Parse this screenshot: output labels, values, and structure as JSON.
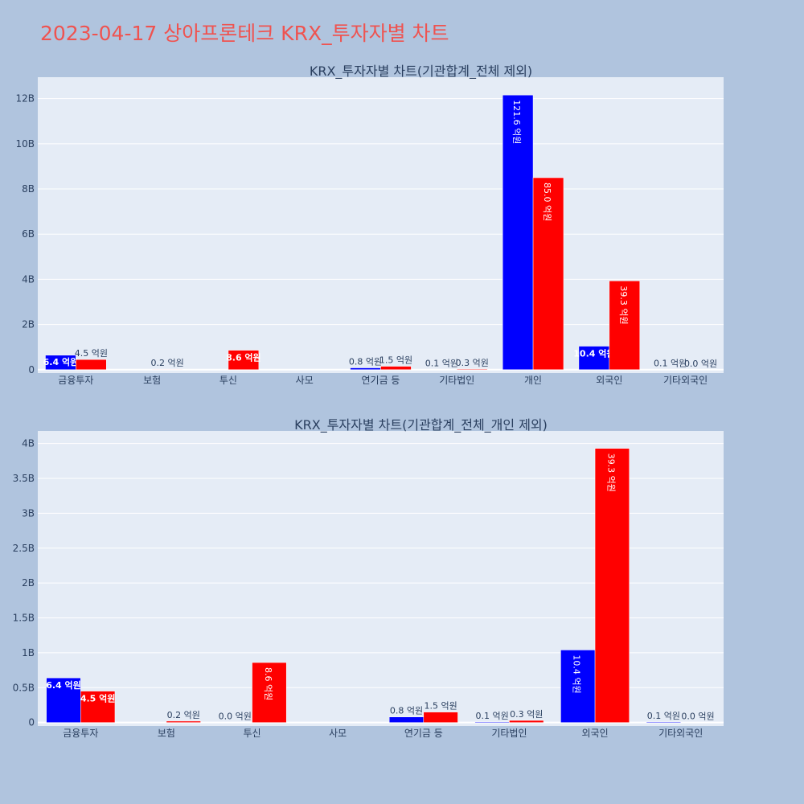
{
  "page_title": "2023-04-17 상아프론테크 KRX_투자자별 차트",
  "colors": {
    "buy": "#0000ff",
    "sell": "#ff0000",
    "plot_bg": "#e5ecf6",
    "grid": "#ffffff",
    "page_bg": "#b0c4de",
    "text": "#2a3f5f",
    "title": "#ef5350"
  },
  "chart_data": [
    {
      "type": "bar",
      "title": "KRX_투자자별 차트(기관합계_전체 제외)",
      "categories": [
        "금융투자",
        "보험",
        "투신",
        "사모",
        "연기금 등",
        "기타법인",
        "개인",
        "외국인",
        "기타외국인"
      ],
      "ylim": [
        -0.15,
        12.95
      ],
      "yticks": [
        0,
        2,
        4,
        6,
        8,
        10,
        12
      ],
      "ytick_labels": [
        "0",
        "2B",
        "4B",
        "6B",
        "8B",
        "10B",
        "12B"
      ],
      "series": [
        {
          "values": [
            0.64,
            0,
            0,
            0,
            0.08,
            0.01,
            12.16,
            1.04,
            0.01
          ],
          "labels": [
            "6.4 억원",
            "",
            "",
            "",
            "0.8 억원",
            "0.1 억원",
            "121.6 억원",
            "10.4 억원",
            "0.1 억원"
          ],
          "label_pos": [
            "inside",
            "",
            "",
            "",
            "outside",
            "outside",
            "inside",
            "inside",
            "outside"
          ]
        },
        {
          "values": [
            0.45,
            0.02,
            0.86,
            0,
            0.15,
            0.03,
            8.5,
            3.93,
            0.0
          ],
          "labels": [
            "4.5 억원",
            "0.2 억원",
            "8.6 억원",
            "",
            "1.5 억원",
            "0.3 억원",
            "85.0 억원",
            "39.3 억원",
            "0.0 억원"
          ],
          "label_pos": [
            "outside",
            "outside",
            "inside",
            "",
            "outside",
            "outside",
            "inside",
            "inside",
            "outside"
          ]
        }
      ]
    },
    {
      "type": "bar",
      "title": "KRX_투자자별 차트(기관합계_전체_개인 제외)",
      "categories": [
        "금융투자",
        "보험",
        "투신",
        "사모",
        "연기금 등",
        "기타법인",
        "외국인",
        "기타외국인"
      ],
      "ylim": [
        -0.05,
        4.18
      ],
      "yticks": [
        0,
        0.5,
        1,
        1.5,
        2,
        2.5,
        3,
        3.5,
        4
      ],
      "ytick_labels": [
        "0",
        "0.5B",
        "1B",
        "1.5B",
        "2B",
        "2.5B",
        "3B",
        "3.5B",
        "4B"
      ],
      "series": [
        {
          "values": [
            0.64,
            0,
            0.0,
            0,
            0.08,
            0.01,
            1.04,
            0.01
          ],
          "labels": [
            "6.4 억원",
            "",
            "0.0 억원",
            "",
            "0.8 억원",
            "0.1 억원",
            "10.4 억원",
            "0.1 억원"
          ],
          "label_pos": [
            "inside",
            "",
            "outside",
            "",
            "outside",
            "outside",
            "inside",
            "outside"
          ]
        },
        {
          "values": [
            0.45,
            0.02,
            0.86,
            0,
            0.15,
            0.03,
            3.93,
            0.0
          ],
          "labels": [
            "4.5 억원",
            "0.2 억원",
            "8.6 억원",
            "",
            "1.5 억원",
            "0.3 억원",
            "39.3 억원",
            "0.0 억원"
          ],
          "label_pos": [
            "inside",
            "outside",
            "inside",
            "",
            "outside",
            "outside",
            "inside",
            "outside"
          ]
        }
      ]
    }
  ]
}
